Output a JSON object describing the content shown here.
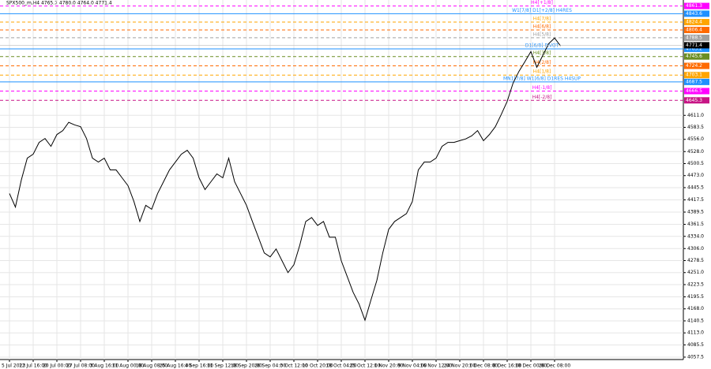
{
  "chart_data": {
    "type": "line",
    "title": "SPX500_m,H4  4765.7 4780.0 4764.0 4771.4",
    "categories": [
      "5 Jul 2023",
      null,
      null,
      null,
      "12 Jul 16:00",
      null,
      null,
      null,
      "20 Jul 00:00",
      null,
      null,
      null,
      "27 Jul 08:00",
      null,
      null,
      null,
      "3 Aug 16:00",
      null,
      null,
      null,
      "11 Aug 00:00",
      null,
      null,
      null,
      "18 Aug 08:00",
      null,
      null,
      null,
      "25 Aug 16:00",
      null,
      null,
      null,
      "4 Sep 16:00",
      null,
      null,
      null,
      "11 Sep 12:00",
      null,
      null,
      null,
      "18 Sep 20:00",
      null,
      null,
      null,
      "26 Sep 04:00",
      null,
      null,
      null,
      "3 Oct 12:00",
      null,
      null,
      null,
      "10 Oct 20:00",
      null,
      null,
      null,
      "18 Oct 04:00",
      null,
      null,
      null,
      "25 Oct 12:00",
      null,
      null,
      null,
      "1 Nov 20:00",
      null,
      null,
      null,
      "9 Nov 04:00",
      null,
      null,
      null,
      "16 Nov 12:00",
      null,
      null,
      null,
      "24 Nov 20:00",
      null,
      null,
      null,
      "1 Dec 08:00",
      null,
      null,
      null,
      "8 Dec 16:00",
      null,
      null,
      null,
      "18 Dec 00:00",
      null,
      null,
      null,
      "26 Dec 08:00",
      null
    ],
    "values": [
      4432,
      4401,
      4463,
      4513,
      4522,
      4549,
      4558,
      4540,
      4567,
      4576,
      4595,
      4589,
      4585,
      4558,
      4513,
      4504,
      4513,
      4486,
      4486,
      4468,
      4450,
      4414,
      4368,
      4405,
      4396,
      4432,
      4459,
      4486,
      4504,
      4522,
      4531,
      4513,
      4468,
      4441,
      4459,
      4477,
      4468,
      4513,
      4459,
      4432,
      4405,
      4368,
      4332,
      4296,
      4287,
      4305,
      4278,
      4251,
      4269,
      4314,
      4368,
      4377,
      4359,
      4368,
      4332,
      4332,
      4278,
      4242,
      4206,
      4179,
      4142,
      4188,
      4233,
      4296,
      4350,
      4368,
      4377,
      4386,
      4414,
      4486,
      4504,
      4504,
      4513,
      4540,
      4549,
      4549,
      4553,
      4557,
      4564,
      4576,
      4553,
      4567,
      4585,
      4613,
      4643,
      4685,
      4712,
      4734,
      4757,
      4721,
      4748,
      4775,
      4788,
      4770
    ],
    "color": "#000000",
    "ylim": [
      4052,
      4875
    ],
    "yticks": [
      4057.5,
      4085.5,
      {
        "value": 4113.0,
        "label": "4113.0"
      },
      4140.5,
      {
        "value": 4168.0,
        "label": "4168.0"
      },
      4195.5,
      4223.5,
      {
        "value": 4251.0,
        "label": "4251.0"
      },
      4278.5,
      {
        "value": 4306.0,
        "label": "4306.0"
      },
      {
        "value": 4334.0,
        "label": "4334.0"
      },
      4361.5,
      4389.5,
      4417.5,
      4445.5,
      {
        "value": 4473.0,
        "label": "4473.0"
      },
      4500.5,
      {
        "value": 4528.0,
        "label": "4528.0"
      },
      {
        "value": 4556.0,
        "label": "4556.0"
      },
      4583.5,
      {
        "value": 4611.0,
        "label": "4611.0"
      }
    ],
    "grid": true,
    "levels": [
      {
        "name": "H4[+1/8]",
        "value": 4861.3,
        "color": "#ff00ff",
        "dashed": true
      },
      {
        "name": "W1[7/8] D1[+2/8] H4RES",
        "value": 4843.6,
        "color": "#1e90ff",
        "dashed": false
      },
      {
        "name": "H4[7/8]",
        "value": 4824.4,
        "color": "#ffa500",
        "dashed": true
      },
      {
        "name": "H4[6/8]",
        "value": 4806.4,
        "color": "#ff6a00",
        "dashed": true
      },
      {
        "name": "H4[5/8]",
        "value": 4788.5,
        "color": "#a0a0a0",
        "dashed": true
      },
      {
        "name": "D1[6/8] PIVOT",
        "value": 4763.2,
        "color": "#1e90ff",
        "dashed": false
      },
      {
        "name": "H4[3/8]",
        "value": 4745.6,
        "color": "#6b8e23",
        "dashed": true
      },
      {
        "name": "H4[2/8]",
        "value": 4724.2,
        "color": "#ff6a00",
        "dashed": true
      },
      {
        "name": "H4[1/8]",
        "value": 4703.1,
        "color": "#ffa500",
        "dashed": true
      },
      {
        "name": "MN1[7/8] W1[6/8] D1RES H4SUP",
        "value": 4687.5,
        "color": "#1e90ff",
        "dashed": false
      },
      {
        "name": "H4[-1/8]",
        "value": 4666.5,
        "color": "#ff00ff",
        "dashed": true
      },
      {
        "name": "H4[-2/8]",
        "value": 4645.3,
        "color": "#c71585",
        "dashed": true
      }
    ],
    "last": 4771.4
  }
}
